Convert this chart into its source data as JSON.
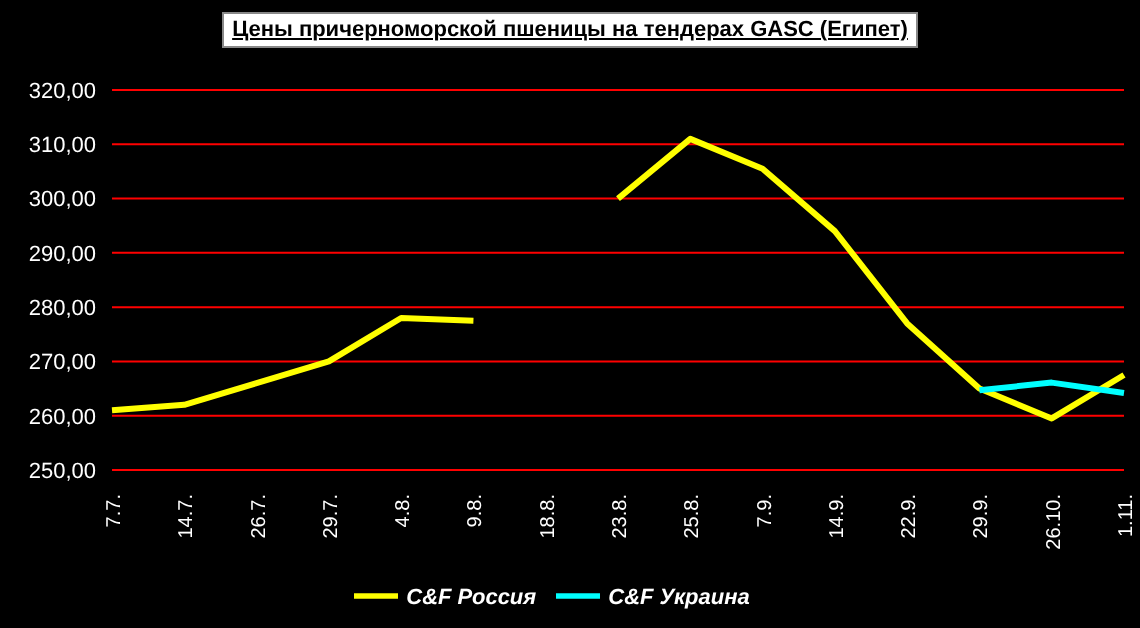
{
  "chart_data": {
    "type": "line",
    "title": "Цены причерноморской пшеницы на тендерах GASC (Египет)",
    "categories": [
      "7.7.",
      "14.7.",
      "26.7.",
      "29.7.",
      "4.8.",
      "9.8.",
      "18.8.",
      "23.8.",
      "25.8.",
      "7.9.",
      "14.9.",
      "22.9.",
      "29.9.",
      "26.10.",
      "1.11."
    ],
    "series": [
      {
        "name": "C&F Россия",
        "color": "#ffff00",
        "values": [
          261,
          262,
          266,
          270,
          278,
          277.5,
          null,
          300,
          311,
          305.5,
          294,
          277,
          265,
          259.5,
          267.5
        ]
      },
      {
        "name": "C&F Украина",
        "color": "#00ffff",
        "values": [
          null,
          null,
          null,
          null,
          null,
          null,
          null,
          null,
          null,
          null,
          null,
          null,
          264.7,
          266.1,
          264.2
        ]
      }
    ],
    "ylim": [
      250,
      320
    ],
    "yticks": [
      {
        "value": 250,
        "label": "250,00"
      },
      {
        "value": 260,
        "label": "260,00"
      },
      {
        "value": 270,
        "label": "270,00"
      },
      {
        "value": 280,
        "label": "280,00"
      },
      {
        "value": 290,
        "label": "290,00"
      },
      {
        "value": 300,
        "label": "300,00"
      },
      {
        "value": 310,
        "label": "310,00"
      },
      {
        "value": 320,
        "label": "320,00"
      }
    ],
    "grid": "y",
    "legend": "bottom",
    "marker": "none",
    "line_style": "solid"
  }
}
